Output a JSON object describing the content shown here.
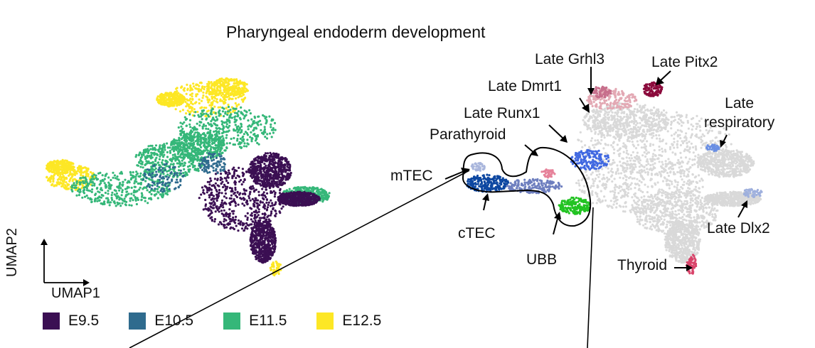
{
  "title": "Pharyngeal endoderm development",
  "axes": {
    "x_label": "UMAP1",
    "y_label": "UMAP2"
  },
  "legend": [
    {
      "label": "E9.5",
      "color": "#3b0f53"
    },
    {
      "label": "E10.5",
      "color": "#2f6b8e"
    },
    {
      "label": "E11.5",
      "color": "#35b779"
    },
    {
      "label": "E12.5",
      "color": "#fde725"
    }
  ],
  "cluster_labels": {
    "late_grhl3": "Late Grhl3",
    "late_pitx2": "Late Pitx2",
    "late_dmrt1": "Late Dmrt1",
    "late_runx1": "Late Runx1",
    "late_respiratory": "Late\nrespiratory",
    "parathyroid": "Parathyroid",
    "mtec": "mTEC",
    "ctec": "cTEC",
    "ubb": "UBB",
    "thyroid": "Thyroid",
    "late_dlx2": "Late Dlx2"
  },
  "cluster_colors": {
    "background": "#d9d9d9",
    "late_grhl3": "#c76f8c",
    "late_pitx2": "#8b0b3c",
    "late_dmrt1": "#e3a9b4",
    "late_runx1": "#4169e1",
    "late_respiratory": "#6a8fe3",
    "parathyroid": "#e6829a",
    "mtec": "#a9b6dc",
    "ctec": "#0d47a1",
    "ubb": "#22c322",
    "thyroid": "#d9446a",
    "late_dlx2": "#9fb0dd",
    "outline": "#000000"
  }
}
